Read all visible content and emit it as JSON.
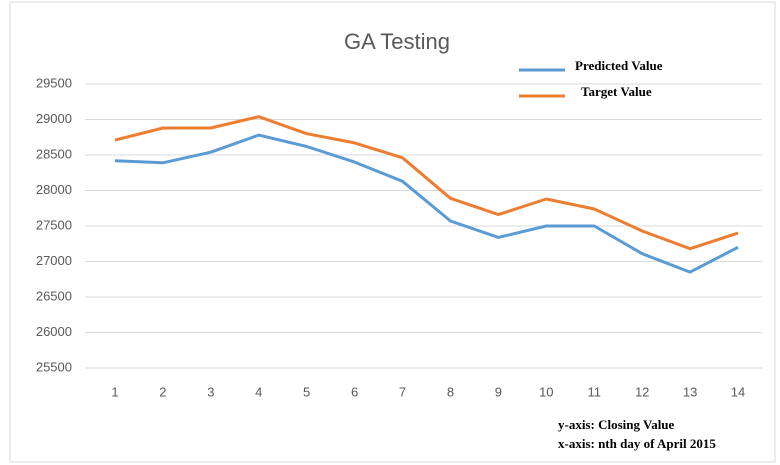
{
  "chart_data": {
    "type": "line",
    "title": "GA Testing",
    "categories": [
      "1",
      "2",
      "3",
      "4",
      "5",
      "6",
      "7",
      "8",
      "9",
      "10",
      "11",
      "12",
      "13",
      "14"
    ],
    "series": [
      {
        "name": "Predicted Value",
        "color": "#5b9bd5",
        "values": [
          28420,
          28390,
          28540,
          28780,
          28620,
          28400,
          28130,
          27570,
          27340,
          27500,
          27500,
          27110,
          26850,
          27200
        ]
      },
      {
        "name": "Target Value",
        "color": "#ed7d31",
        "values": [
          28710,
          28880,
          28880,
          29040,
          28800,
          28670,
          28460,
          27890,
          27660,
          27880,
          27740,
          27430,
          27180,
          27400
        ]
      }
    ],
    "ylim": [
      25500,
      29500
    ],
    "yticks": [
      25500,
      26000,
      26500,
      27000,
      27500,
      28000,
      28500,
      29000,
      29500
    ],
    "grid": true,
    "legend": "top-right",
    "annotations": [
      "y-axis: Closing Value",
      "x-axis: nth day of April 2015"
    ]
  }
}
